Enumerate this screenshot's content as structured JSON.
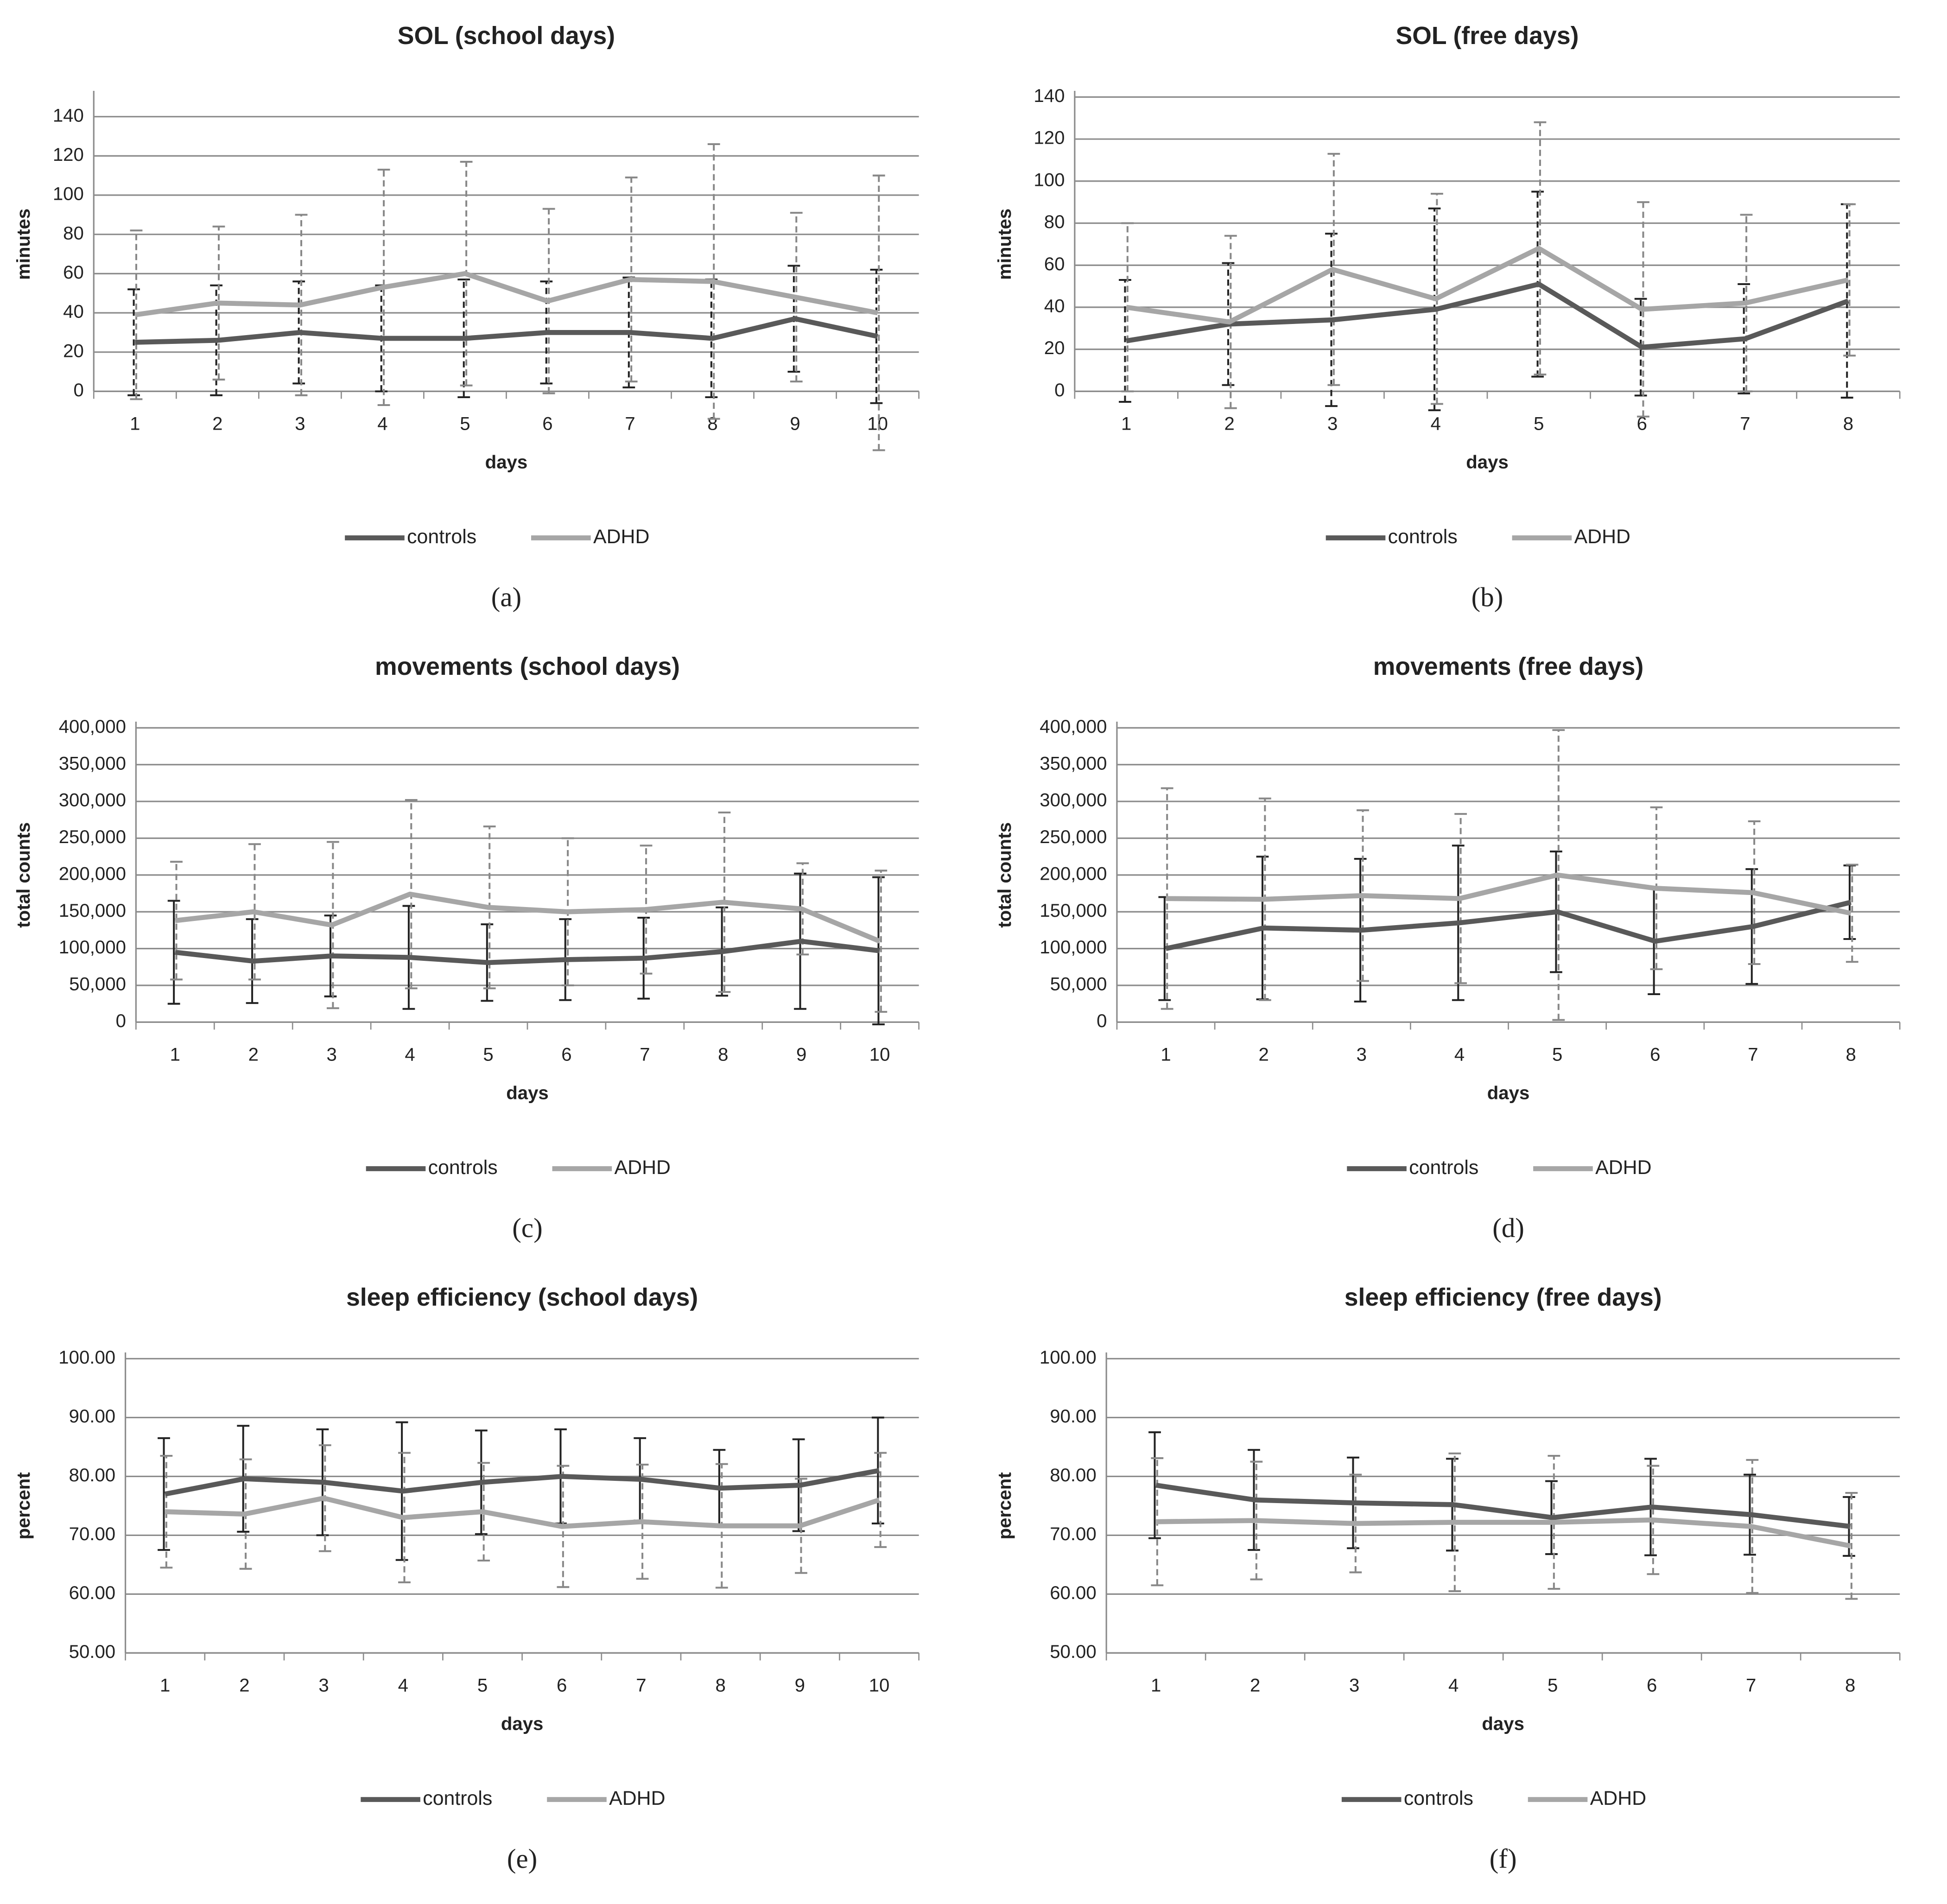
{
  "chart_data": [
    {
      "type": "line",
      "title": "SOL (school days)",
      "label": "(a)",
      "x_label": "days",
      "y_label": "minutes",
      "categories": [
        1,
        2,
        3,
        4,
        5,
        6,
        7,
        8,
        9,
        10
      ],
      "ylim": [
        0,
        150
      ],
      "yticks": [
        0,
        20,
        40,
        60,
        80,
        100,
        120,
        140
      ],
      "grid": true,
      "series": [
        {
          "name": "controls",
          "color": "#595959",
          "values": [
            25,
            26,
            30,
            27,
            27,
            30,
            30,
            27,
            37,
            28
          ],
          "errors": [
            27,
            28,
            26,
            27,
            30,
            26,
            28,
            30,
            27,
            34
          ]
        },
        {
          "name": "ADHD",
          "color": "#a6a6a6",
          "values": [
            39,
            45,
            44,
            53,
            60,
            46,
            57,
            56,
            48,
            40
          ],
          "errors": [
            43,
            39,
            46,
            60,
            57,
            47,
            52,
            70,
            43,
            70
          ]
        }
      ]
    },
    {
      "type": "line",
      "title": "SOL (free days)",
      "label": "(b)",
      "x_label": "days",
      "y_label": "minutes",
      "categories": [
        1,
        2,
        3,
        4,
        5,
        6,
        7,
        8
      ],
      "ylim": [
        0,
        140
      ],
      "yticks": [
        0,
        20,
        40,
        60,
        80,
        100,
        120,
        140
      ],
      "grid": true,
      "series": [
        {
          "name": "controls",
          "color": "#595959",
          "values": [
            24,
            32,
            34,
            39,
            51,
            21,
            25,
            43
          ],
          "errors": [
            29,
            29,
            41,
            48,
            44,
            23,
            26,
            46
          ]
        },
        {
          "name": "ADHD",
          "color": "#a6a6a6",
          "values": [
            40,
            33,
            58,
            44,
            68,
            39,
            42,
            53
          ],
          "errors": [
            40,
            41,
            55,
            50,
            60,
            51,
            42,
            36
          ]
        }
      ]
    },
    {
      "type": "line",
      "title": "movements (school days)",
      "label": "(c)",
      "x_label": "days",
      "y_label": "total counts",
      "categories": [
        1,
        2,
        3,
        4,
        5,
        6,
        7,
        8,
        9,
        10
      ],
      "ylim": [
        0,
        400000
      ],
      "grid": true,
      "yticks": [
        0,
        {
          "value": 50000,
          "label": "50,000"
        },
        {
          "value": 100000,
          "label": "100,000"
        },
        {
          "value": 150000,
          "label": "150,000"
        },
        {
          "value": 200000,
          "label": "200,000"
        },
        {
          "value": 250000,
          "label": "250,000"
        },
        {
          "value": 300000,
          "label": "300,000"
        },
        {
          "value": 350000,
          "label": "350,000"
        },
        {
          "value": 400000,
          "label": "400,000"
        }
      ],
      "series": [
        {
          "name": "controls",
          "color": "#595959",
          "values": [
            95000,
            83000,
            90000,
            88000,
            81000,
            85000,
            87000,
            96000,
            110000,
            97000
          ],
          "errors": [
            70000,
            57000,
            55000,
            70000,
            52000,
            55000,
            55000,
            60000,
            92000,
            100000
          ]
        },
        {
          "name": "ADHD",
          "color": "#a6a6a6",
          "values": [
            138000,
            150000,
            132000,
            174000,
            156000,
            150000,
            153000,
            163000,
            154000,
            110000
          ],
          "errors": [
            80000,
            92000,
            113000,
            128000,
            110000,
            100000,
            87000,
            122000,
            62000,
            96000
          ]
        }
      ]
    },
    {
      "type": "line",
      "title": "movements (free days)",
      "label": "(d)",
      "x_label": "days",
      "y_label": "total counts",
      "categories": [
        1,
        2,
        3,
        4,
        5,
        6,
        7,
        8
      ],
      "ylim": [
        0,
        400000
      ],
      "grid": true,
      "yticks": [
        0,
        {
          "value": 50000,
          "label": "50,000"
        },
        {
          "value": 100000,
          "label": "100,000"
        },
        {
          "value": 150000,
          "label": "150,000"
        },
        {
          "value": 200000,
          "label": "200,000"
        },
        {
          "value": 250000,
          "label": "250,000"
        },
        {
          "value": 300000,
          "label": "300,000"
        },
        {
          "value": 350000,
          "label": "350,000"
        },
        {
          "value": 400000,
          "label": "400,000"
        }
      ],
      "series": [
        {
          "name": "controls",
          "color": "#595959",
          "values": [
            100000,
            128000,
            125000,
            135000,
            150000,
            110000,
            130000,
            163000
          ],
          "errors": [
            70000,
            97000,
            97000,
            105000,
            82000,
            72000,
            78000,
            50000
          ]
        },
        {
          "name": "ADHD",
          "color": "#a6a6a6",
          "values": [
            168000,
            167000,
            172000,
            168000,
            200000,
            182000,
            176000,
            148000
          ],
          "errors": [
            150000,
            137000,
            116000,
            115000,
            197000,
            110000,
            97000,
            66000
          ]
        }
      ]
    },
    {
      "type": "line",
      "title": "sleep efficiency (school days)",
      "label": "(e)",
      "x_label": "days",
      "y_label": "percent",
      "categories": [
        1,
        2,
        3,
        4,
        5,
        6,
        7,
        8,
        9,
        10
      ],
      "ylim": [
        50,
        100
      ],
      "grid": true,
      "yticks": [
        {
          "value": 50,
          "label": "50.00"
        },
        {
          "value": 60,
          "label": "60.00"
        },
        {
          "value": 70,
          "label": "70.00"
        },
        {
          "value": 80,
          "label": "80.00"
        },
        {
          "value": 90,
          "label": "90.00"
        },
        {
          "value": 100,
          "label": "100.00"
        }
      ],
      "series": [
        {
          "name": "controls",
          "color": "#595959",
          "values": [
            77,
            79.6,
            79,
            77.5,
            79,
            80,
            79.5,
            78,
            78.5,
            81
          ],
          "errors": [
            9.5,
            9,
            9,
            11.7,
            8.8,
            8,
            7,
            6.5,
            7.8,
            9
          ]
        },
        {
          "name": "ADHD",
          "color": "#a6a6a6",
          "values": [
            74,
            73.6,
            76.3,
            73,
            74,
            71.5,
            72.3,
            71.6,
            71.6,
            76
          ],
          "errors": [
            9.5,
            9.3,
            9,
            11,
            8.3,
            10.3,
            9.7,
            10.5,
            8,
            8
          ]
        }
      ]
    },
    {
      "type": "line",
      "title": "sleep efficiency (free days)",
      "label": "(f)",
      "x_label": "days",
      "y_label": "percent",
      "categories": [
        1,
        2,
        3,
        4,
        5,
        6,
        7,
        8
      ],
      "ylim": [
        50,
        100
      ],
      "grid": true,
      "yticks": [
        {
          "value": 50,
          "label": "50.00"
        },
        {
          "value": 60,
          "label": "60.00"
        },
        {
          "value": 70,
          "label": "70.00"
        },
        {
          "value": 80,
          "label": "80.00"
        },
        {
          "value": 90,
          "label": "90.00"
        },
        {
          "value": 100,
          "label": "100.00"
        }
      ],
      "series": [
        {
          "name": "controls",
          "color": "#595959",
          "values": [
            78.5,
            76,
            75.5,
            75.2,
            73,
            74.8,
            73.5,
            71.5
          ],
          "errors": [
            9,
            8.5,
            7.7,
            7.8,
            6.2,
            8.2,
            6.8,
            5
          ]
        },
        {
          "name": "ADHD",
          "color": "#a6a6a6",
          "values": [
            72.3,
            72.5,
            72,
            72.2,
            72.2,
            72.6,
            71.5,
            68.2
          ],
          "errors": [
            10.8,
            10,
            8.3,
            11.7,
            11.3,
            9.2,
            11.3,
            9
          ]
        }
      ]
    }
  ]
}
